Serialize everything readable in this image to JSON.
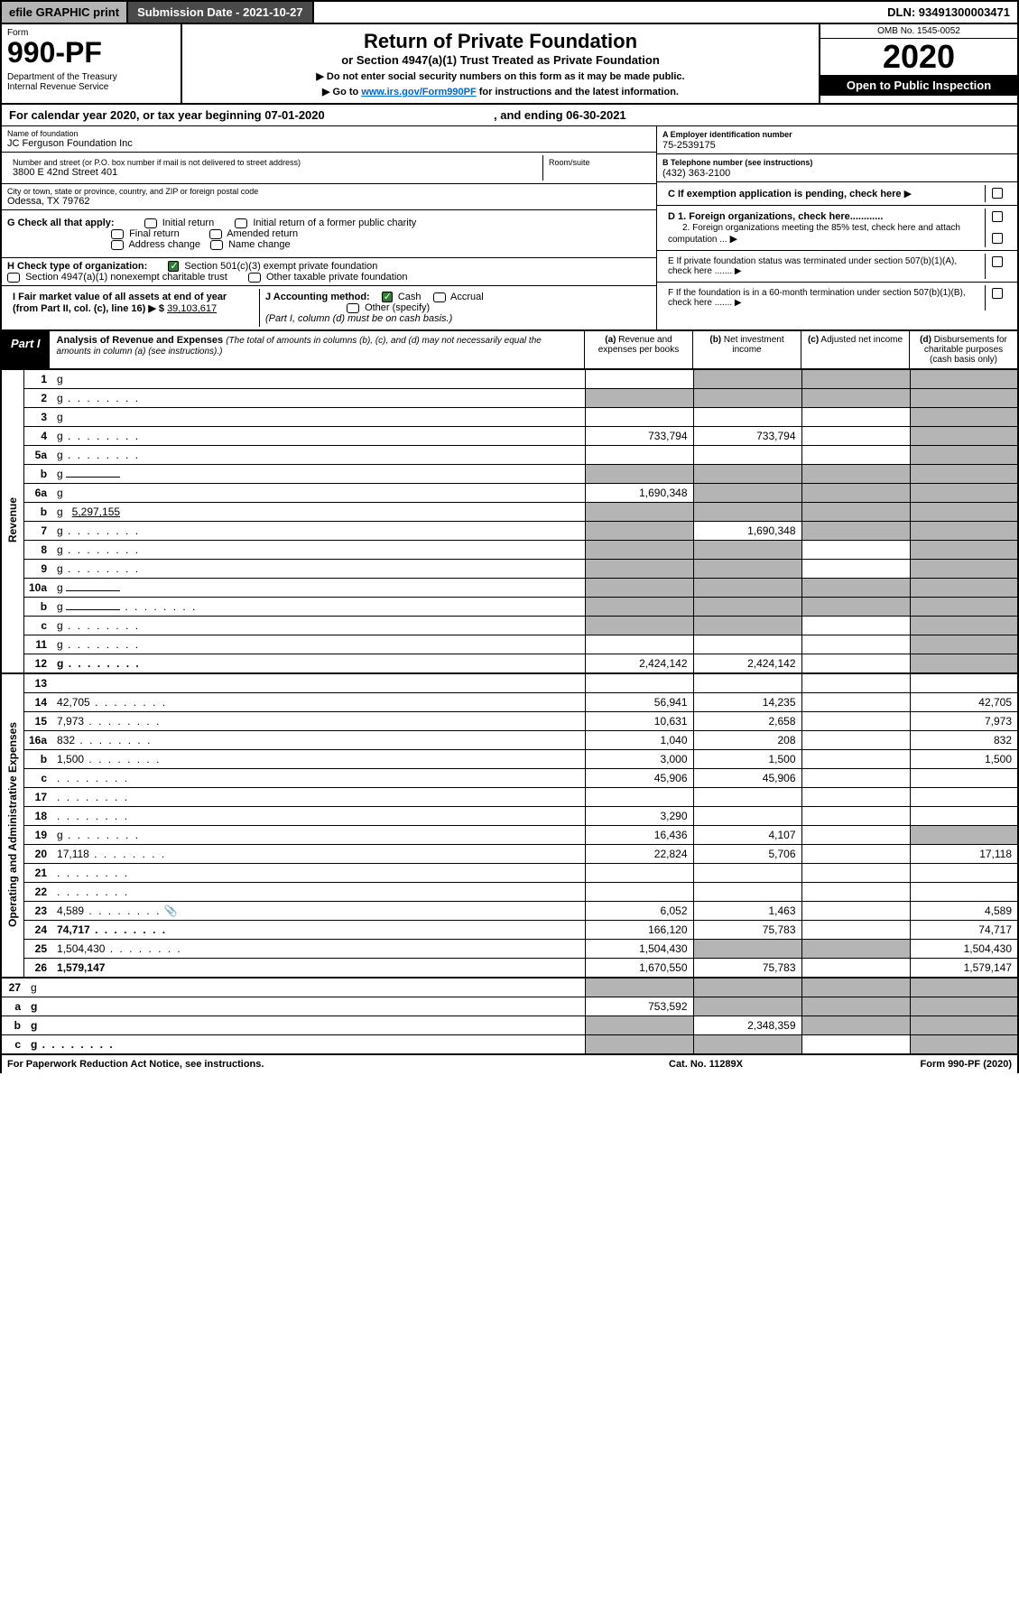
{
  "topbar": {
    "efile": "efile GRAPHIC print",
    "submission": "Submission Date - 2021-10-27",
    "dln": "DLN: 93491300003471"
  },
  "header": {
    "form_label": "Form",
    "form_no": "990-PF",
    "dept": "Department of the Treasury\nInternal Revenue Service",
    "title": "Return of Private Foundation",
    "subtitle": "or Section 4947(a)(1) Trust Treated as Private Foundation",
    "note1": "▶ Do not enter social security numbers on this form as it may be made public.",
    "note2_pre": "▶ Go to ",
    "note2_link": "www.irs.gov/Form990PF",
    "note2_post": " for instructions and the latest information.",
    "omb": "OMB No. 1545-0052",
    "year": "2020",
    "open": "Open to Public Inspection"
  },
  "calendar": {
    "text_pre": "For calendar year 2020, or tax year beginning ",
    "begin": "07-01-2020",
    "mid": " , and ending ",
    "end": "06-30-2021"
  },
  "filer": {
    "name_lbl": "Name of foundation",
    "name": "JC Ferguson Foundation Inc",
    "addr_lbl": "Number and street (or P.O. box number if mail is not delivered to street address)",
    "addr": "3800 E 42nd Street 401",
    "room_lbl": "Room/suite",
    "city_lbl": "City or town, state or province, country, and ZIP or foreign postal code",
    "city": "Odessa, TX  79762",
    "ein_lbl": "A Employer identification number",
    "ein": "75-2539175",
    "phone_lbl": "B Telephone number (see instructions)",
    "phone": "(432) 363-2100",
    "c_lbl": "C If exemption application is pending, check here",
    "d1_lbl": "D 1. Foreign organizations, check here............",
    "d2_lbl": "2. Foreign organizations meeting the 85% test, check here and attach computation ...",
    "e_lbl": "E  If private foundation status was terminated under section 507(b)(1)(A), check here .......",
    "f_lbl": "F  If the foundation is in a 60-month termination under section 507(b)(1)(B), check here .......",
    "g_lbl": "G Check all that apply:",
    "g_opts": [
      "Initial return",
      "Initial return of a former public charity",
      "Final return",
      "Amended return",
      "Address change",
      "Name change"
    ],
    "h_lbl": "H Check type of organization:",
    "h_opts": [
      "Section 501(c)(3) exempt private foundation",
      "Section 4947(a)(1) nonexempt charitable trust",
      "Other taxable private foundation"
    ],
    "i_lbl": "I Fair market value of all assets at end of year (from Part II, col. (c), line 16) ▶ $",
    "i_val": "39,103,617",
    "j_lbl": "J Accounting method:",
    "j_opts": [
      "Cash",
      "Accrual",
      "Other (specify)"
    ],
    "j_note": "(Part I, column (d) must be on cash basis.)"
  },
  "part1": {
    "label": "Part I",
    "title": "Analysis of Revenue and Expenses",
    "title_note": "(The total of amounts in columns (b), (c), and (d) may not necessarily equal the amounts in column (a) (see instructions).)",
    "cols": {
      "a": "(a)  Revenue and expenses per books",
      "b": "(b)  Net investment income",
      "c": "(c)  Adjusted net income",
      "d": "(d)  Disbursements for charitable purposes (cash basis only)"
    }
  },
  "sections": {
    "revenue": "Revenue",
    "opex": "Operating and Administrative Expenses"
  },
  "rows": [
    {
      "n": "1",
      "d": "g",
      "a": "",
      "b": "g",
      "c": "g"
    },
    {
      "n": "2",
      "d": "g",
      "a": "g",
      "b": "g",
      "c": "g",
      "dots": true
    },
    {
      "n": "3",
      "d": "g",
      "a": "",
      "b": "",
      "c": ""
    },
    {
      "n": "4",
      "d": "g",
      "a": "733,794",
      "b": "733,794",
      "c": "",
      "dots": true
    },
    {
      "n": "5a",
      "d": "g",
      "a": "",
      "b": "",
      "c": "",
      "dots": true
    },
    {
      "n": "b",
      "d": "g",
      "a": "g",
      "b": "g",
      "c": "g",
      "inline": true
    },
    {
      "n": "6a",
      "d": "g",
      "a": "1,690,348",
      "b": "g",
      "c": "g"
    },
    {
      "n": "b",
      "d": "g",
      "a": "g",
      "b": "g",
      "c": "g",
      "inline": true,
      "inline_val": "5,297,155"
    },
    {
      "n": "7",
      "d": "g",
      "a": "g",
      "b": "1,690,348",
      "c": "g",
      "dots": true
    },
    {
      "n": "8",
      "d": "g",
      "a": "g",
      "b": "g",
      "c": "",
      "dots": true
    },
    {
      "n": "9",
      "d": "g",
      "a": "g",
      "b": "g",
      "c": "",
      "dots": true
    },
    {
      "n": "10a",
      "d": "g",
      "a": "g",
      "b": "g",
      "c": "g",
      "inline": true
    },
    {
      "n": "b",
      "d": "g",
      "a": "g",
      "b": "g",
      "c": "g",
      "inline": true,
      "dots": true
    },
    {
      "n": "c",
      "d": "g",
      "a": "g",
      "b": "g",
      "c": "",
      "dots": true
    },
    {
      "n": "11",
      "d": "g",
      "a": "",
      "b": "",
      "c": "",
      "dots": true
    },
    {
      "n": "12",
      "d": "g",
      "a": "2,424,142",
      "b": "2,424,142",
      "c": "",
      "bold": true,
      "dots": true
    }
  ],
  "rows2": [
    {
      "n": "13",
      "d": "",
      "a": "",
      "b": "",
      "c": ""
    },
    {
      "n": "14",
      "d": "42,705",
      "a": "56,941",
      "b": "14,235",
      "c": "",
      "dots": true
    },
    {
      "n": "15",
      "d": "7,973",
      "a": "10,631",
      "b": "2,658",
      "c": "",
      "dots": true
    },
    {
      "n": "16a",
      "d": "832",
      "a": "1,040",
      "b": "208",
      "c": "",
      "dots": true
    },
    {
      "n": "b",
      "d": "1,500",
      "a": "3,000",
      "b": "1,500",
      "c": "",
      "dots": true
    },
    {
      "n": "c",
      "d": "",
      "a": "45,906",
      "b": "45,906",
      "c": "",
      "dots": true
    },
    {
      "n": "17",
      "d": "",
      "a": "",
      "b": "",
      "c": "",
      "dots": true
    },
    {
      "n": "18",
      "d": "",
      "a": "3,290",
      "b": "",
      "c": "",
      "dots": true
    },
    {
      "n": "19",
      "d": "g",
      "a": "16,436",
      "b": "4,107",
      "c": "",
      "dots": true
    },
    {
      "n": "20",
      "d": "17,118",
      "a": "22,824",
      "b": "5,706",
      "c": "",
      "dots": true
    },
    {
      "n": "21",
      "d": "",
      "a": "",
      "b": "",
      "c": "",
      "dots": true
    },
    {
      "n": "22",
      "d": "",
      "a": "",
      "b": "",
      "c": "",
      "dots": true
    },
    {
      "n": "23",
      "d": "4,589",
      "a": "6,052",
      "b": "1,463",
      "c": "",
      "dots": true,
      "icon": true
    },
    {
      "n": "24",
      "d": "74,717",
      "a": "166,120",
      "b": "75,783",
      "c": "",
      "bold": true,
      "dots": true
    },
    {
      "n": "25",
      "d": "1,504,430",
      "a": "1,504,430",
      "b": "g",
      "c": "g",
      "dots": true
    },
    {
      "n": "26",
      "d": "1,579,147",
      "a": "1,670,550",
      "b": "75,783",
      "c": "",
      "bold": true
    }
  ],
  "rows3": [
    {
      "n": "27",
      "d": "g",
      "a": "g",
      "b": "g",
      "c": "g"
    },
    {
      "n": "a",
      "d": "g",
      "a": "753,592",
      "b": "g",
      "c": "g",
      "bold": true
    },
    {
      "n": "b",
      "d": "g",
      "a": "g",
      "b": "2,348,359",
      "c": "g",
      "bold": true
    },
    {
      "n": "c",
      "d": "g",
      "a": "g",
      "b": "g",
      "c": "",
      "bold": true,
      "dots": true
    }
  ],
  "footer": {
    "left": "For Paperwork Reduction Act Notice, see instructions.",
    "mid": "Cat. No. 11289X",
    "right": "Form 990-PF (2020)"
  }
}
